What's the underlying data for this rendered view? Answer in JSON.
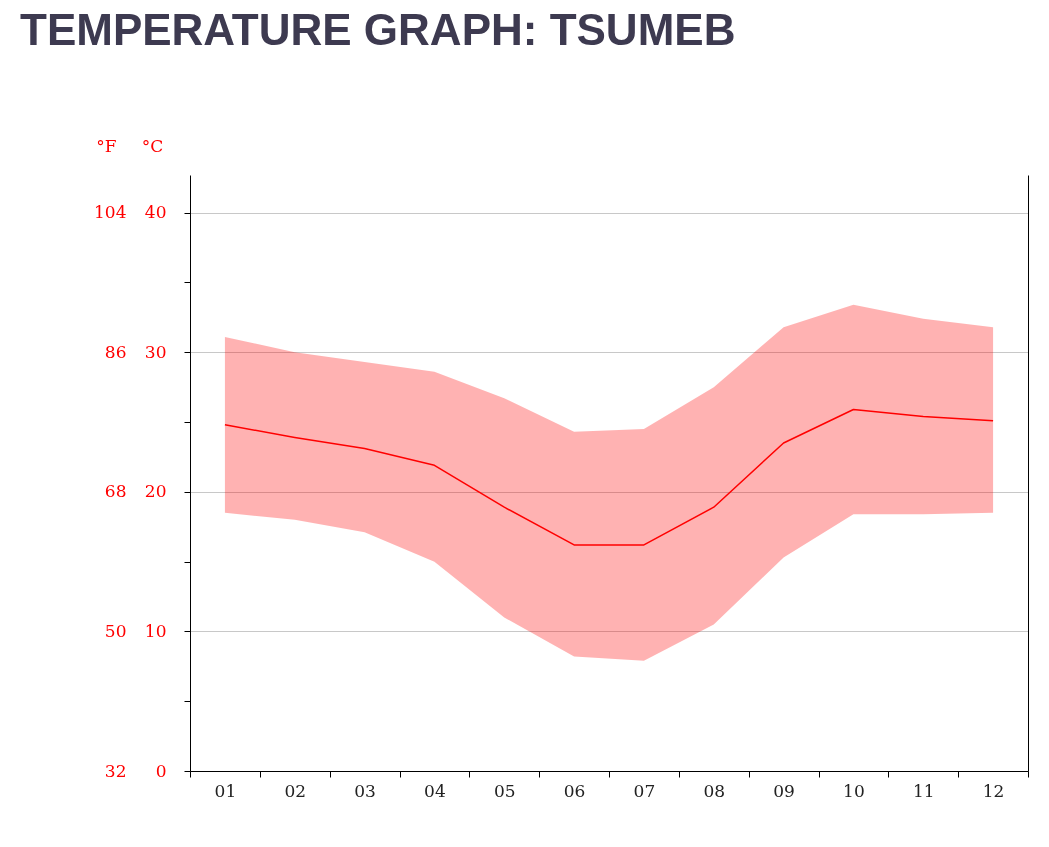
{
  "chart_data": {
    "type": "line",
    "title": "TEMPERATURE GRAPH: TSUMEB",
    "ylabel": "°C",
    "y2label": "°F",
    "categories": [
      "01",
      "02",
      "03",
      "04",
      "05",
      "06",
      "07",
      "08",
      "09",
      "10",
      "11",
      "12"
    ],
    "series": [
      {
        "color": "#ff0000",
        "values": [
          24.8,
          23.9,
          23.1,
          21.9,
          18.9,
          16.2,
          16.2,
          18.9,
          23.5,
          25.9,
          25.4,
          25.1
        ],
        "lower": [
          18.5,
          18.0,
          17.1,
          15.0,
          11.0,
          8.2,
          7.9,
          10.5,
          15.3,
          18.4,
          18.4,
          18.5
        ],
        "upper": [
          31.1,
          30.0,
          29.3,
          28.6,
          26.7,
          24.3,
          24.5,
          27.5,
          31.8,
          33.4,
          32.4,
          31.8
        ]
      }
    ],
    "ylim": [
      0,
      42.7
    ],
    "yticks": [
      0,
      {
        "value": 5,
        "label": null
      },
      10,
      {
        "value": 15,
        "label": null
      },
      20,
      {
        "value": 25,
        "label": null
      },
      30,
      {
        "value": 35,
        "label": null
      },
      40
    ],
    "y2lim": [
      32,
      108.9
    ],
    "y2ticks": [
      32,
      50,
      68,
      86,
      104
    ],
    "grid": "y"
  }
}
